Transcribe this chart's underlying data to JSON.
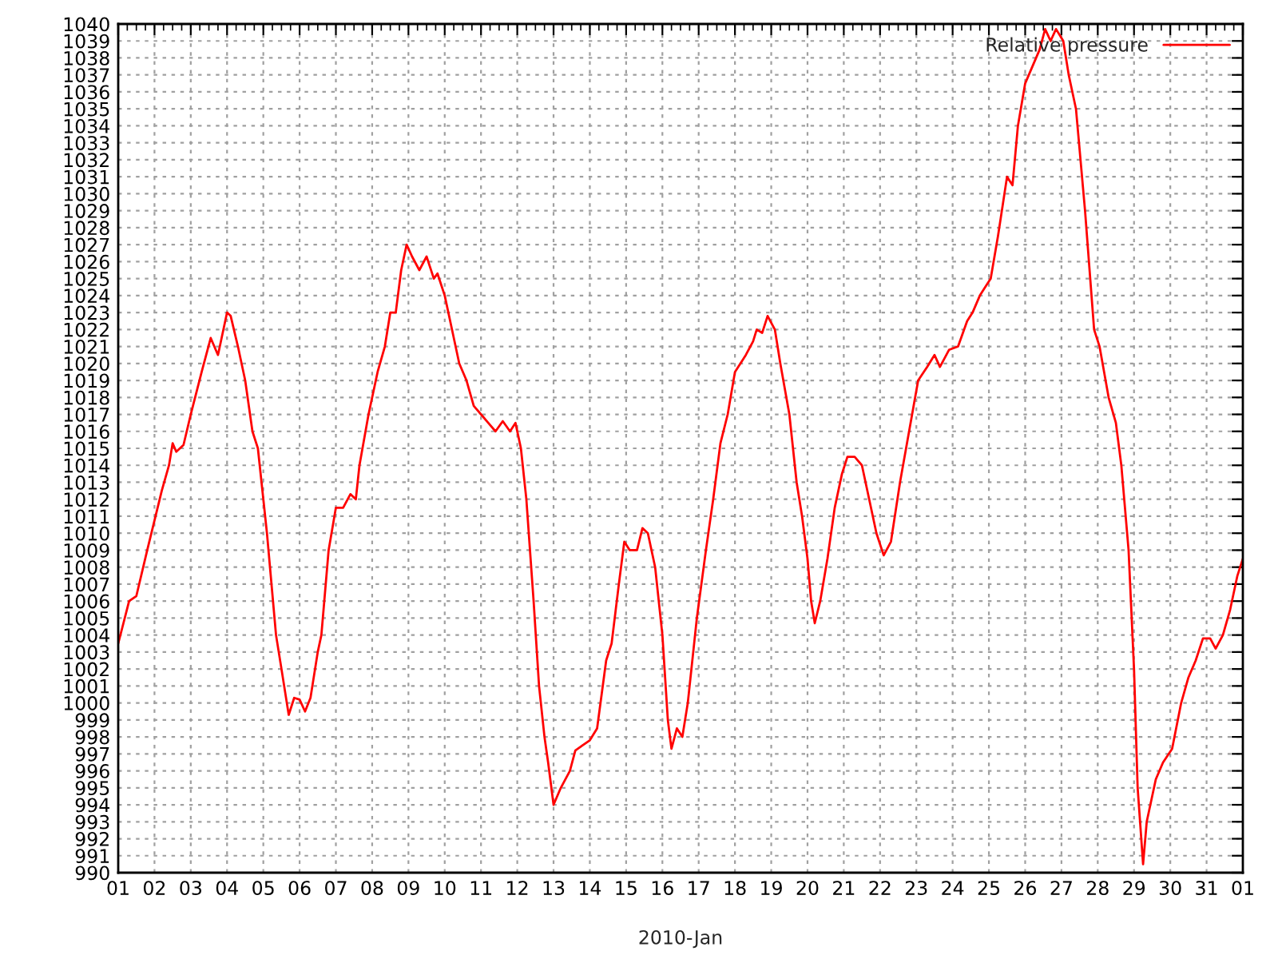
{
  "chart_data": {
    "type": "line",
    "xlabel": "2010-Jan",
    "x": [
      "2010-01-01T00:00",
      "2010-01-01T07:12",
      "2010-01-01T12:00",
      "2010-01-01T19:12",
      "2010-01-02T04:48",
      "2010-01-02T09:36",
      "2010-01-02T12:00",
      "2010-01-02T14:24",
      "2010-01-02T19:12",
      "2010-01-03T00:00",
      "2010-01-03T07:12",
      "2010-01-03T13:12",
      "2010-01-03T18:00",
      "2010-01-04T00:00",
      "2010-01-04T02:24",
      "2010-01-04T07:12",
      "2010-01-04T12:00",
      "2010-01-04T16:48",
      "2010-01-04T20:24",
      "2010-01-05T02:24",
      "2010-01-05T08:24",
      "2010-01-05T12:00",
      "2010-01-05T16:48",
      "2010-01-05T20:24",
      "2010-01-06T00:00",
      "2010-01-06T03:36",
      "2010-01-06T07:12",
      "2010-01-06T12:00",
      "2010-01-06T14:24",
      "2010-01-06T19:12",
      "2010-01-07T00:00",
      "2010-01-07T04:48",
      "2010-01-07T09:36",
      "2010-01-07T13:12",
      "2010-01-07T15:36",
      "2010-01-07T21:36",
      "2010-01-08T03:36",
      "2010-01-08T08:24",
      "2010-01-08T12:00",
      "2010-01-08T15:36",
      "2010-01-08T19:12",
      "2010-01-08T22:48",
      "2010-01-09T02:24",
      "2010-01-09T07:12",
      "2010-01-09T12:00",
      "2010-01-09T16:48",
      "2010-01-09T19:12",
      "2010-01-10T00:00",
      "2010-01-10T04:48",
      "2010-01-10T09:36",
      "2010-01-10T14:24",
      "2010-01-10T19:12",
      "2010-01-11T00:00",
      "2010-01-11T04:48",
      "2010-01-11T09:36",
      "2010-01-11T14:24",
      "2010-01-11T19:12",
      "2010-01-11T22:48",
      "2010-01-12T02:24",
      "2010-01-12T06:00",
      "2010-01-12T10:48",
      "2010-01-12T14:24",
      "2010-01-12T18:00",
      "2010-01-12T20:24",
      "2010-01-13T00:00",
      "2010-01-13T04:48",
      "2010-01-13T10:48",
      "2010-01-13T14:24",
      "2010-01-13T19:12",
      "2010-01-14T00:00",
      "2010-01-14T04:48",
      "2010-01-14T10:48",
      "2010-01-14T14:24",
      "2010-01-14T19:12",
      "2010-01-14T22:48",
      "2010-01-15T02:24",
      "2010-01-15T07:12",
      "2010-01-15T10:48",
      "2010-01-15T14:24",
      "2010-01-15T19:12",
      "2010-01-16T00:00",
      "2010-01-16T03:36",
      "2010-01-16T06:00",
      "2010-01-16T09:36",
      "2010-01-16T13:12",
      "2010-01-16T16:48",
      "2010-01-16T22:48",
      "2010-01-17T04:48",
      "2010-01-17T09:36",
      "2010-01-17T14:24",
      "2010-01-17T19:12",
      "2010-01-18T00:00",
      "2010-01-18T07:12",
      "2010-01-18T12:00",
      "2010-01-18T14:24",
      "2010-01-18T18:00",
      "2010-01-18T21:36",
      "2010-01-19T02:24",
      "2010-01-19T06:00",
      "2010-01-19T12:00",
      "2010-01-19T16:48",
      "2010-01-19T20:24",
      "2010-01-20T00:00",
      "2010-01-20T02:24",
      "2010-01-20T04:48",
      "2010-01-20T08:24",
      "2010-01-20T13:12",
      "2010-01-20T18:00",
      "2010-01-20T22:48",
      "2010-01-21T02:24",
      "2010-01-21T07:12",
      "2010-01-21T12:00",
      "2010-01-21T16:48",
      "2010-01-21T21:36",
      "2010-01-22T02:24",
      "2010-01-22T07:12",
      "2010-01-22T13:12",
      "2010-01-22T19:12",
      "2010-01-23T01:12",
      "2010-01-23T07:12",
      "2010-01-23T12:00",
      "2010-01-23T15:36",
      "2010-01-23T21:36",
      "2010-01-24T03:36",
      "2010-01-24T09:36",
      "2010-01-24T13:12",
      "2010-01-24T18:00",
      "2010-01-25T01:12",
      "2010-01-25T06:00",
      "2010-01-25T12:00",
      "2010-01-25T15:36",
      "2010-01-25T19:12",
      "2010-01-26T00:00",
      "2010-01-26T04:48",
      "2010-01-26T09:36",
      "2010-01-26T13:12",
      "2010-01-26T16:48",
      "2010-01-26T20:24",
      "2010-01-27T01:12",
      "2010-01-27T04:48",
      "2010-01-27T09:36",
      "2010-01-27T15:36",
      "2010-01-27T21:36",
      "2010-01-28T01:12",
      "2010-01-28T07:12",
      "2010-01-28T12:00",
      "2010-01-28T15:36",
      "2010-01-28T20:24",
      "2010-01-29T00:00",
      "2010-01-29T02:24",
      "2010-01-29T06:00",
      "2010-01-29T08:24",
      "2010-01-29T14:24",
      "2010-01-29T19:12",
      "2010-01-30T01:12",
      "2010-01-30T07:12",
      "2010-01-30T12:00",
      "2010-01-30T16:48",
      "2010-01-30T21:36",
      "2010-01-31T02:24",
      "2010-01-31T06:00",
      "2010-01-31T10:48",
      "2010-01-31T15:36",
      "2010-01-31T20:24",
      "2010-02-01T00:00"
    ],
    "series": [
      {
        "name": "Relative pressure",
        "color": "#ff0000",
        "values": [
          1003.5,
          1006,
          1006.3,
          1009,
          1012.5,
          1014,
          1015.3,
          1014.8,
          1015.2,
          1017,
          1019.5,
          1021.5,
          1020.5,
          1023,
          1022.8,
          1021,
          1019,
          1016,
          1015,
          1010,
          1004,
          1002,
          999.3,
          1000.3,
          1000.2,
          999.5,
          1000.3,
          1003,
          1004,
          1009,
          1011.5,
          1011.5,
          1012.3,
          1012,
          1014,
          1017,
          1019.5,
          1021,
          1023,
          1023,
          1025.5,
          1027,
          1026.3,
          1025.5,
          1026.3,
          1025,
          1025.3,
          1024,
          1022,
          1020,
          1019,
          1017.5,
          1017,
          1016.5,
          1016,
          1016.6,
          1016,
          1016.5,
          1015,
          1012,
          1006,
          1001,
          998,
          996.5,
          994,
          995,
          996,
          997.2,
          997.5,
          997.8,
          998.5,
          1002.5,
          1003.5,
          1007,
          1009.5,
          1009,
          1009,
          1010.3,
          1010,
          1008,
          1004,
          999,
          997.3,
          998.5,
          998,
          1000,
          1005,
          1009,
          1012,
          1015.3,
          1017,
          1019.5,
          1020.5,
          1021.3,
          1022,
          1021.8,
          1022.8,
          1022,
          1020,
          1017,
          1013,
          1011,
          1008.5,
          1006,
          1004.7,
          1006,
          1008.5,
          1011.5,
          1013.5,
          1014.5,
          1014.5,
          1014,
          1012,
          1010,
          1008.7,
          1009.5,
          1013,
          1016,
          1019,
          1019.8,
          1020.5,
          1019.8,
          1020.8,
          1021,
          1022.5,
          1023,
          1024,
          1025,
          1027.5,
          1031,
          1030.5,
          1034,
          1036.5,
          1037.5,
          1038.5,
          1039.7,
          1039,
          1039.7,
          1039,
          1037,
          1035,
          1029,
          1022,
          1021,
          1018,
          1016.5,
          1014,
          1009,
          1002,
          995,
          990.5,
          993,
          995.5,
          996.5,
          997.3,
          1000,
          1001.5,
          1002.5,
          1003.8,
          1003.8,
          1003.2,
          1004,
          1005.5,
          1007.5,
          1008.5
        ]
      }
    ],
    "xlim": [
      "2010-01-01",
      "2010-02-01"
    ],
    "xticks": [
      {
        "value": "2010-01-01",
        "label": "01"
      },
      {
        "value": "2010-01-02",
        "label": "02"
      },
      {
        "value": "2010-01-03",
        "label": "03"
      },
      {
        "value": "2010-01-04",
        "label": "04"
      },
      {
        "value": "2010-01-05",
        "label": "05"
      },
      {
        "value": "2010-01-06",
        "label": "06"
      },
      {
        "value": "2010-01-07",
        "label": "07"
      },
      {
        "value": "2010-01-08",
        "label": "08"
      },
      {
        "value": "2010-01-09",
        "label": "09"
      },
      {
        "value": "2010-01-10",
        "label": "10"
      },
      {
        "value": "2010-01-11",
        "label": "11"
      },
      {
        "value": "2010-01-12",
        "label": "12"
      },
      {
        "value": "2010-01-13",
        "label": "13"
      },
      {
        "value": "2010-01-14",
        "label": "14"
      },
      {
        "value": "2010-01-15",
        "label": "15"
      },
      {
        "value": "2010-01-16",
        "label": "16"
      },
      {
        "value": "2010-01-17",
        "label": "17"
      },
      {
        "value": "2010-01-18",
        "label": "18"
      },
      {
        "value": "2010-01-19",
        "label": "19"
      },
      {
        "value": "2010-01-20",
        "label": "20"
      },
      {
        "value": "2010-01-21",
        "label": "21"
      },
      {
        "value": "2010-01-22",
        "label": "22"
      },
      {
        "value": "2010-01-23",
        "label": "23"
      },
      {
        "value": "2010-01-24",
        "label": "24"
      },
      {
        "value": "2010-01-25",
        "label": "25"
      },
      {
        "value": "2010-01-26",
        "label": "26"
      },
      {
        "value": "2010-01-27",
        "label": "27"
      },
      {
        "value": "2010-01-28",
        "label": "28"
      },
      {
        "value": "2010-01-29",
        "label": "29"
      },
      {
        "value": "2010-01-30",
        "label": "30"
      },
      {
        "value": "2010-01-31",
        "label": "31"
      },
      {
        "value": "2010-02-01",
        "label": "01"
      }
    ],
    "ylim": [
      990,
      1040
    ],
    "yticks": [
      990,
      991,
      992,
      993,
      994,
      995,
      996,
      997,
      998,
      999,
      1000,
      1001,
      1002,
      1003,
      1004,
      1005,
      1006,
      1007,
      1008,
      1009,
      1010,
      1011,
      1012,
      1013,
      1014,
      1015,
      1016,
      1017,
      1018,
      1019,
      1020,
      1021,
      1022,
      1023,
      1024,
      1025,
      1026,
      1027,
      1028,
      1029,
      1030,
      1031,
      1032,
      1033,
      1034,
      1035,
      1036,
      1037,
      1038,
      1039,
      1040
    ],
    "grid": true,
    "legend": "top right",
    "line_style": "solid",
    "marker": "none"
  }
}
